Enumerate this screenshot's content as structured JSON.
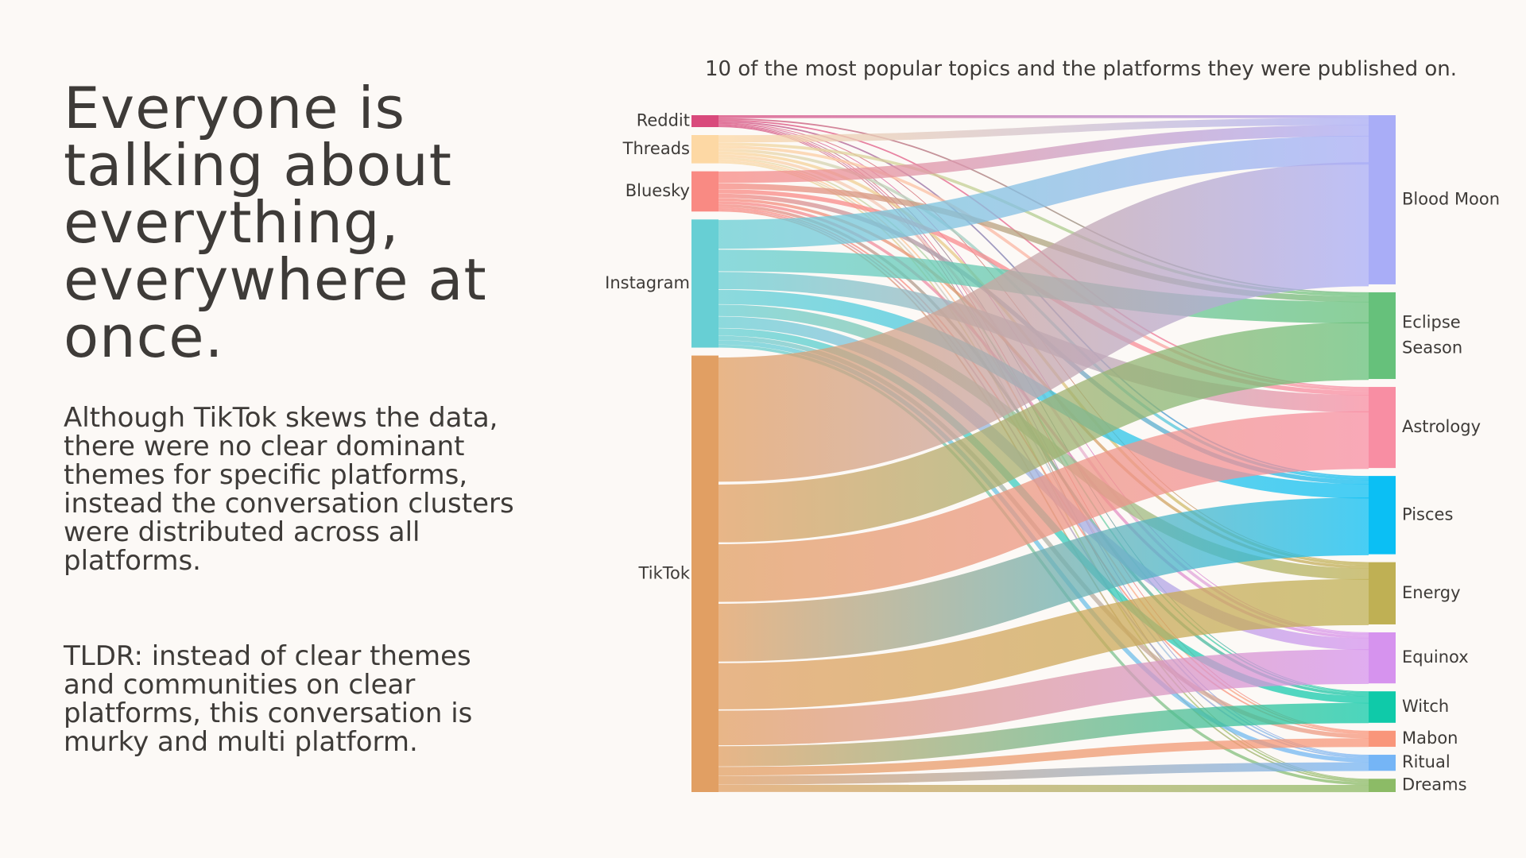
{
  "headline": "Everyone is talking about everything, everywhere at once.",
  "paragraph1": "Although TikTok skews the data, there were no clear dominant themes for specific platforms, instead the conversation clusters were distributed across all platforms.",
  "paragraph2": "TLDR: instead of clear themes and communities on clear platforms, this conversation is murky and multi platform.",
  "chart_data": {
    "type": "sankey",
    "title": "10 of the most popular topics and the platforms they were published on.",
    "sources": [
      {
        "name": "Reddit",
        "color": "#d94a7c"
      },
      {
        "name": "Threads",
        "color": "#fdd8a4"
      },
      {
        "name": "Bluesky",
        "color": "#f98a83"
      },
      {
        "name": "Instagram",
        "color": "#67cfd4"
      },
      {
        "name": "TikTok",
        "color": "#e19f63"
      }
    ],
    "targets": [
      {
        "name": "Blood Moon",
        "color": "#a9adf7"
      },
      {
        "name": "Eclipse Season",
        "color": "#66c17b"
      },
      {
        "name": "Astrology",
        "color": "#f88ea3"
      },
      {
        "name": "Pisces",
        "color": "#0bbff4"
      },
      {
        "name": "Energy",
        "color": "#bfb054"
      },
      {
        "name": "Equinox",
        "color": "#d693ee"
      },
      {
        "name": "Witch",
        "color": "#0fcaa9"
      },
      {
        "name": "Mabon",
        "color": "#f9967b"
      },
      {
        "name": "Ritual",
        "color": "#75b5f6"
      },
      {
        "name": "Dreams",
        "color": "#8cbb66"
      }
    ],
    "flows": [
      [
        "Reddit",
        "Blood Moon",
        2
      ],
      [
        "Reddit",
        "Eclipse Season",
        1
      ],
      [
        "Reddit",
        "Astrology",
        1
      ],
      [
        "Reddit",
        "Pisces",
        1
      ],
      [
        "Reddit",
        "Energy",
        0.5
      ],
      [
        "Reddit",
        "Equinox",
        0.5
      ],
      [
        "Reddit",
        "Witch",
        0.5
      ],
      [
        "Reddit",
        "Mabon",
        0.5
      ],
      [
        "Reddit",
        "Ritual",
        0.5
      ],
      [
        "Reddit",
        "Dreams",
        0.5
      ],
      [
        "Threads",
        "Blood Moon",
        5
      ],
      [
        "Threads",
        "Eclipse Season",
        2
      ],
      [
        "Threads",
        "Astrology",
        2
      ],
      [
        "Threads",
        "Pisces",
        2
      ],
      [
        "Threads",
        "Energy",
        2
      ],
      [
        "Threads",
        "Equinox",
        2
      ],
      [
        "Threads",
        "Witch",
        1
      ],
      [
        "Threads",
        "Mabon",
        1
      ],
      [
        "Threads",
        "Ritual",
        1
      ],
      [
        "Threads",
        "Dreams",
        1
      ],
      [
        "Bluesky",
        "Blood Moon",
        8
      ],
      [
        "Bluesky",
        "Eclipse Season",
        4
      ],
      [
        "Bluesky",
        "Astrology",
        3
      ],
      [
        "Bluesky",
        "Pisces",
        3
      ],
      [
        "Bluesky",
        "Energy",
        2
      ],
      [
        "Bluesky",
        "Equinox",
        2
      ],
      [
        "Bluesky",
        "Witch",
        2
      ],
      [
        "Bluesky",
        "Mabon",
        1
      ],
      [
        "Bluesky",
        "Ritual",
        1
      ],
      [
        "Bluesky",
        "Dreams",
        1
      ],
      [
        "Instagram",
        "Blood Moon",
        20
      ],
      [
        "Instagram",
        "Eclipse Season",
        15
      ],
      [
        "Instagram",
        "Astrology",
        12
      ],
      [
        "Instagram",
        "Pisces",
        10
      ],
      [
        "Instagram",
        "Energy",
        8
      ],
      [
        "Instagram",
        "Equinox",
        8
      ],
      [
        "Instagram",
        "Witch",
        5
      ],
      [
        "Instagram",
        "Mabon",
        3
      ],
      [
        "Instagram",
        "Ritual",
        3
      ],
      [
        "Instagram",
        "Dreams",
        2
      ],
      [
        "TikTok",
        "Blood Moon",
        86
      ],
      [
        "TikTok",
        "Eclipse Season",
        40
      ],
      [
        "TikTok",
        "Astrology",
        40
      ],
      [
        "TikTok",
        "Pisces",
        40
      ],
      [
        "TikTok",
        "Energy",
        32
      ],
      [
        "TikTok",
        "Equinox",
        24
      ],
      [
        "TikTok",
        "Witch",
        14
      ],
      [
        "TikTok",
        "Mabon",
        6
      ],
      [
        "TikTok",
        "Ritual",
        6
      ],
      [
        "TikTok",
        "Dreams",
        5
      ]
    ]
  }
}
